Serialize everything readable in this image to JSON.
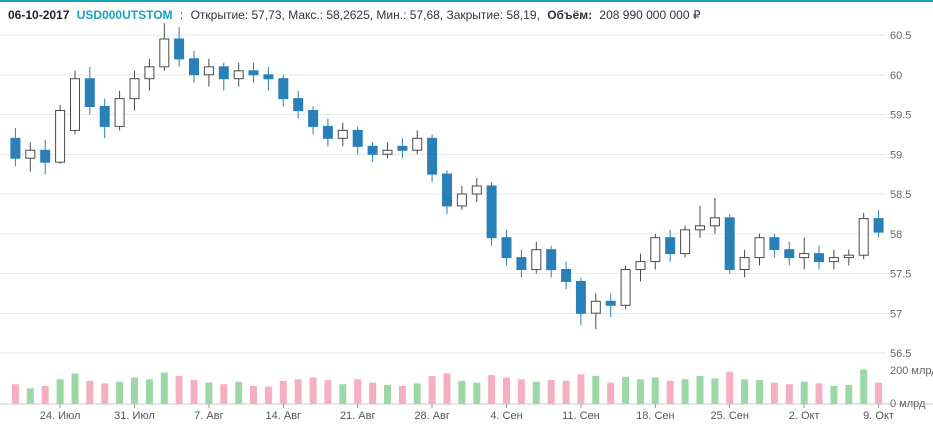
{
  "header": {
    "date": "06-10-2017",
    "symbol": "USD000UTSTOM",
    "separator": ":",
    "ohlc": "Открытие: 57,73, Макс.: 58,2625, Мин.: 57,68, Закрытие: 58,19,",
    "volume_label": "Объём:",
    "volume_value": "208 990 000 000 ₽"
  },
  "colors": {
    "accent": "#17a2c4",
    "bear_fill": "#2980b9",
    "bull_stroke": "#4a4a4a",
    "bull_fill": "#ffffff",
    "vol_up": "#9bd8a5",
    "vol_down": "#f6afc0",
    "grid": "#e8e8e8",
    "axis_line": "#cccccc",
    "tick": "#999999"
  },
  "chart_data": {
    "type": "candlestick+volume",
    "title": "USD000UTSTOM daily candlestick chart with volume",
    "price_axis": {
      "min": 56.5,
      "max": 60.5,
      "step": 0.5,
      "side": "right"
    },
    "volume_axis_unit": "млрд",
    "y_ticks": [
      {
        "label": "60.5",
        "value": 60.5
      },
      {
        "label": "60",
        "value": 60
      },
      {
        "label": "59.5",
        "value": 59.5
      },
      {
        "label": "59",
        "value": 59
      },
      {
        "label": "58.5",
        "value": 58.5
      },
      {
        "label": "58",
        "value": 58
      },
      {
        "label": "57.5",
        "value": 57.5
      },
      {
        "label": "57",
        "value": 57
      },
      {
        "label": "56.5",
        "value": 56.5
      }
    ],
    "volume_ticks": [
      {
        "label": "200 млрд",
        "value": 200
      },
      {
        "label": "0 млрд",
        "value": 0
      }
    ],
    "x_ticks": [
      {
        "label": "24. Июл",
        "index": 3
      },
      {
        "label": "31. Июл",
        "index": 8
      },
      {
        "label": "7. Авг",
        "index": 13
      },
      {
        "label": "14. Авг",
        "index": 18
      },
      {
        "label": "21. Авг",
        "index": 23
      },
      {
        "label": "28. Авг",
        "index": 28
      },
      {
        "label": "4. Сен",
        "index": 33
      },
      {
        "label": "11. Сен",
        "index": 38
      },
      {
        "label": "18. Сен",
        "index": 43
      },
      {
        "label": "25. Сен",
        "index": 48
      },
      {
        "label": "2. Окт",
        "index": 53
      },
      {
        "label": "9. Окт",
        "index": 58
      }
    ],
    "candles": [
      {
        "d": "19.07",
        "o": 59.2,
        "h": 59.33,
        "l": 58.85,
        "c": 58.95,
        "v": 120
      },
      {
        "d": "20.07",
        "o": 58.95,
        "h": 59.15,
        "l": 58.78,
        "c": 59.05,
        "v": 95
      },
      {
        "d": "21.07",
        "o": 59.05,
        "h": 59.18,
        "l": 58.75,
        "c": 58.9,
        "v": 110
      },
      {
        "d": "24.07",
        "o": 58.9,
        "h": 59.62,
        "l": 58.88,
        "c": 59.55,
        "v": 150
      },
      {
        "d": "25.07",
        "o": 59.3,
        "h": 60.05,
        "l": 59.25,
        "c": 59.95,
        "v": 185
      },
      {
        "d": "26.07",
        "o": 59.95,
        "h": 60.1,
        "l": 59.5,
        "c": 59.6,
        "v": 140
      },
      {
        "d": "27.07",
        "o": 59.6,
        "h": 59.7,
        "l": 59.2,
        "c": 59.35,
        "v": 125
      },
      {
        "d": "28.07",
        "o": 59.35,
        "h": 59.8,
        "l": 59.3,
        "c": 59.7,
        "v": 135
      },
      {
        "d": "31.07",
        "o": 59.7,
        "h": 60.05,
        "l": 59.55,
        "c": 59.95,
        "v": 160
      },
      {
        "d": "01.08",
        "o": 59.95,
        "h": 60.2,
        "l": 59.8,
        "c": 60.1,
        "v": 150
      },
      {
        "d": "02.08",
        "o": 60.1,
        "h": 60.65,
        "l": 60.05,
        "c": 60.45,
        "v": 190
      },
      {
        "d": "03.08",
        "o": 60.45,
        "h": 60.6,
        "l": 60.1,
        "c": 60.2,
        "v": 170
      },
      {
        "d": "04.08",
        "o": 60.2,
        "h": 60.3,
        "l": 59.9,
        "c": 60.0,
        "v": 145
      },
      {
        "d": "07.08",
        "o": 60.0,
        "h": 60.2,
        "l": 59.85,
        "c": 60.1,
        "v": 130
      },
      {
        "d": "08.08",
        "o": 60.1,
        "h": 60.15,
        "l": 59.8,
        "c": 59.95,
        "v": 120
      },
      {
        "d": "09.08",
        "o": 59.95,
        "h": 60.15,
        "l": 59.85,
        "c": 60.05,
        "v": 135
      },
      {
        "d": "10.08",
        "o": 60.05,
        "h": 60.15,
        "l": 59.9,
        "c": 60.0,
        "v": 110
      },
      {
        "d": "11.08",
        "o": 60.0,
        "h": 60.1,
        "l": 59.8,
        "c": 59.95,
        "v": 105
      },
      {
        "d": "14.08",
        "o": 59.95,
        "h": 60.0,
        "l": 59.6,
        "c": 59.7,
        "v": 140
      },
      {
        "d": "15.08",
        "o": 59.7,
        "h": 59.8,
        "l": 59.45,
        "c": 59.55,
        "v": 150
      },
      {
        "d": "16.08",
        "o": 59.55,
        "h": 59.6,
        "l": 59.25,
        "c": 59.35,
        "v": 160
      },
      {
        "d": "17.08",
        "o": 59.35,
        "h": 59.45,
        "l": 59.1,
        "c": 59.2,
        "v": 145
      },
      {
        "d": "18.08",
        "o": 59.2,
        "h": 59.4,
        "l": 59.1,
        "c": 59.3,
        "v": 120
      },
      {
        "d": "21.08",
        "o": 59.3,
        "h": 59.35,
        "l": 59.0,
        "c": 59.1,
        "v": 150
      },
      {
        "d": "22.08",
        "o": 59.1,
        "h": 59.15,
        "l": 58.9,
        "c": 59.0,
        "v": 130
      },
      {
        "d": "23.08",
        "o": 59.0,
        "h": 59.15,
        "l": 58.95,
        "c": 59.05,
        "v": 115
      },
      {
        "d": "24.08",
        "o": 59.1,
        "h": 59.2,
        "l": 58.95,
        "c": 59.05,
        "v": 110
      },
      {
        "d": "25.08",
        "o": 59.05,
        "h": 59.3,
        "l": 59.0,
        "c": 59.2,
        "v": 125
      },
      {
        "d": "28.08",
        "o": 59.2,
        "h": 59.25,
        "l": 58.65,
        "c": 58.75,
        "v": 170
      },
      {
        "d": "29.08",
        "o": 58.75,
        "h": 58.8,
        "l": 58.25,
        "c": 58.35,
        "v": 185
      },
      {
        "d": "30.08",
        "o": 58.35,
        "h": 58.6,
        "l": 58.3,
        "c": 58.5,
        "v": 140
      },
      {
        "d": "31.08",
        "o": 58.5,
        "h": 58.7,
        "l": 58.4,
        "c": 58.6,
        "v": 130
      },
      {
        "d": "01.09",
        "o": 58.6,
        "h": 58.65,
        "l": 57.85,
        "c": 57.95,
        "v": 175
      },
      {
        "d": "04.09",
        "o": 57.95,
        "h": 58.05,
        "l": 57.6,
        "c": 57.7,
        "v": 160
      },
      {
        "d": "05.09",
        "o": 57.7,
        "h": 57.8,
        "l": 57.45,
        "c": 57.55,
        "v": 150
      },
      {
        "d": "06.09",
        "o": 57.55,
        "h": 57.9,
        "l": 57.5,
        "c": 57.8,
        "v": 135
      },
      {
        "d": "07.09",
        "o": 57.8,
        "h": 57.85,
        "l": 57.45,
        "c": 57.55,
        "v": 145
      },
      {
        "d": "08.09",
        "o": 57.55,
        "h": 57.65,
        "l": 57.3,
        "c": 57.4,
        "v": 140
      },
      {
        "d": "11.09",
        "o": 57.4,
        "h": 57.45,
        "l": 56.85,
        "c": 57.0,
        "v": 180
      },
      {
        "d": "12.09",
        "o": 57.0,
        "h": 57.25,
        "l": 56.8,
        "c": 57.15,
        "v": 170
      },
      {
        "d": "13.09",
        "o": 57.15,
        "h": 57.25,
        "l": 56.95,
        "c": 57.1,
        "v": 130
      },
      {
        "d": "14.09",
        "o": 57.1,
        "h": 57.6,
        "l": 57.05,
        "c": 57.55,
        "v": 165
      },
      {
        "d": "15.09",
        "o": 57.55,
        "h": 57.75,
        "l": 57.4,
        "c": 57.65,
        "v": 150
      },
      {
        "d": "18.09",
        "o": 57.65,
        "h": 58.0,
        "l": 57.55,
        "c": 57.95,
        "v": 160
      },
      {
        "d": "19.09",
        "o": 57.95,
        "h": 58.05,
        "l": 57.65,
        "c": 57.75,
        "v": 140
      },
      {
        "d": "20.09",
        "o": 57.75,
        "h": 58.1,
        "l": 57.7,
        "c": 58.05,
        "v": 150
      },
      {
        "d": "21.09",
        "o": 58.05,
        "h": 58.35,
        "l": 57.95,
        "c": 58.1,
        "v": 170
      },
      {
        "d": "22.09",
        "o": 58.1,
        "h": 58.45,
        "l": 58.0,
        "c": 58.2,
        "v": 155
      },
      {
        "d": "25.09",
        "o": 58.2,
        "h": 58.25,
        "l": 57.5,
        "c": 57.55,
        "v": 195
      },
      {
        "d": "26.09",
        "o": 57.55,
        "h": 57.8,
        "l": 57.45,
        "c": 57.7,
        "v": 150
      },
      {
        "d": "27.09",
        "o": 57.7,
        "h": 58.0,
        "l": 57.6,
        "c": 57.95,
        "v": 145
      },
      {
        "d": "28.09",
        "o": 57.95,
        "h": 58.0,
        "l": 57.7,
        "c": 57.8,
        "v": 130
      },
      {
        "d": "29.09",
        "o": 57.8,
        "h": 57.9,
        "l": 57.6,
        "c": 57.7,
        "v": 120
      },
      {
        "d": "02.10",
        "o": 57.7,
        "h": 57.95,
        "l": 57.55,
        "c": 57.75,
        "v": 135
      },
      {
        "d": "03.10",
        "o": 57.75,
        "h": 57.85,
        "l": 57.55,
        "c": 57.65,
        "v": 125
      },
      {
        "d": "04.10",
        "o": 57.65,
        "h": 57.8,
        "l": 57.55,
        "c": 57.7,
        "v": 110
      },
      {
        "d": "05.10",
        "o": 57.7,
        "h": 57.8,
        "l": 57.6,
        "c": 57.73,
        "v": 115
      },
      {
        "d": "06.10",
        "o": 57.73,
        "h": 58.2625,
        "l": 57.68,
        "c": 58.19,
        "v": 209
      },
      {
        "d": "09.10",
        "o": 58.19,
        "h": 58.3,
        "l": 57.95,
        "c": 58.02,
        "v": 130
      }
    ]
  }
}
